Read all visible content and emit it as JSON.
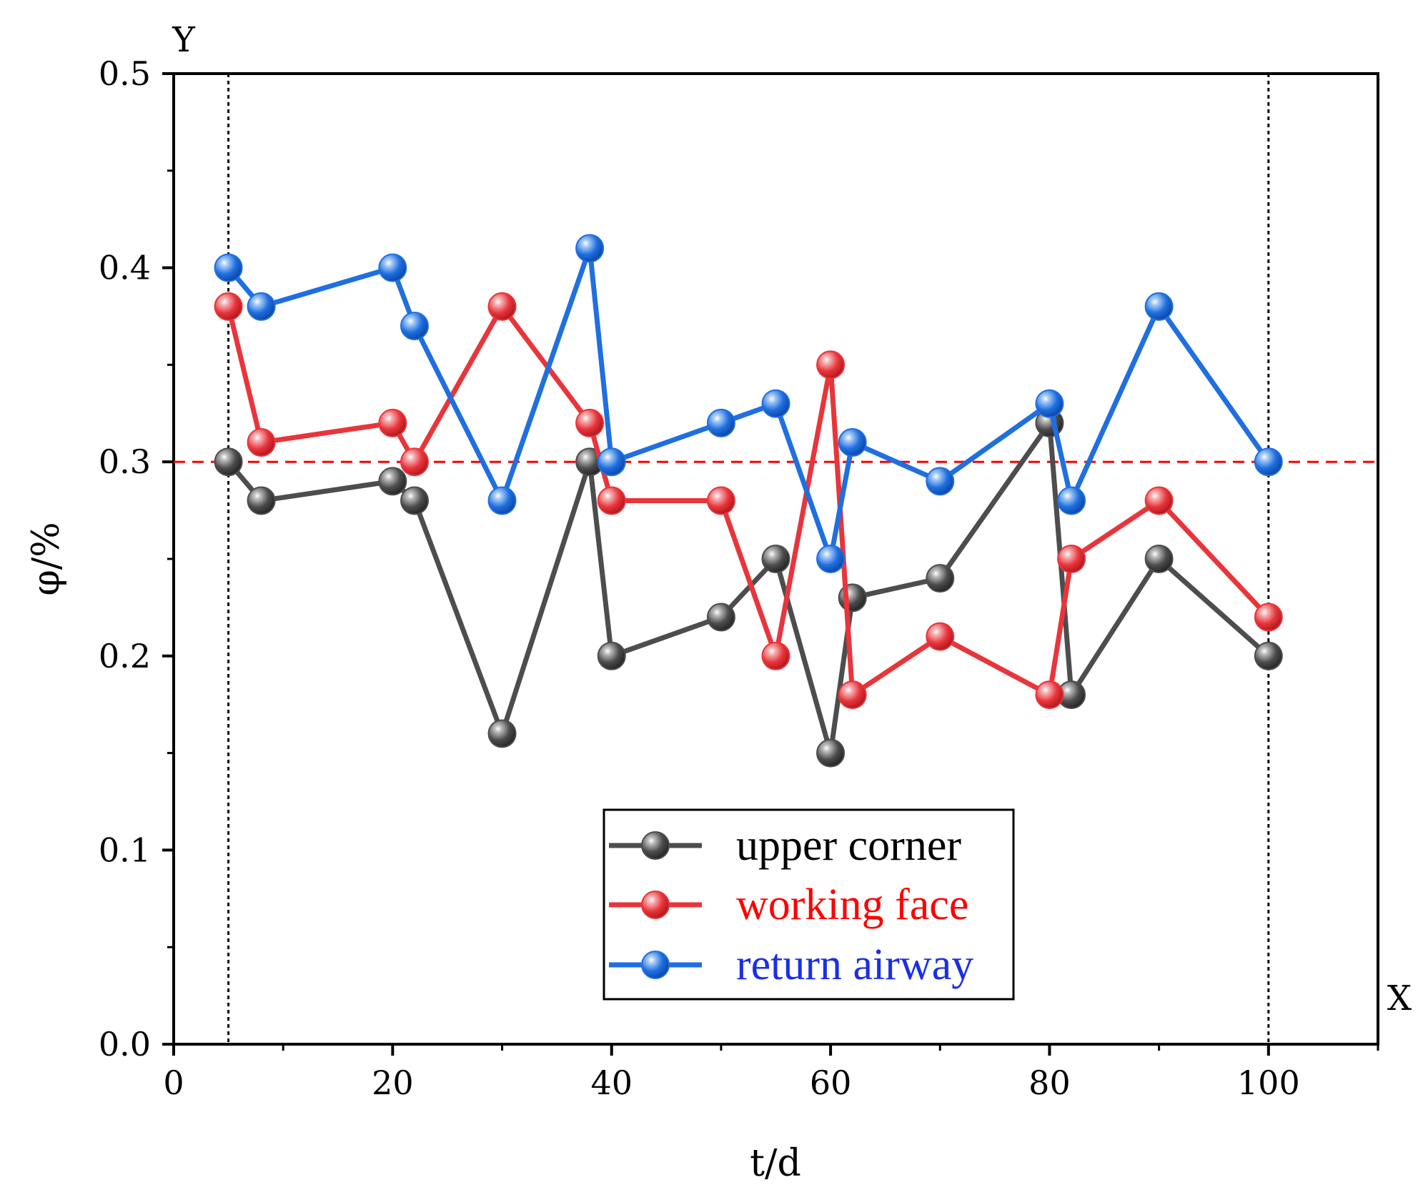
{
  "chart_data": {
    "type": "line",
    "title": "",
    "xlabel": "t/d",
    "ylabel": "φ/%",
    "x_axis_tag": "X",
    "y_axis_tag": "Y",
    "xlim": [
      0,
      110
    ],
    "ylim": [
      0,
      0.5
    ],
    "x_ticks": [
      0,
      20,
      40,
      60,
      80,
      100
    ],
    "x_tick_labels": [
      "0",
      "20",
      "40",
      "60",
      "80",
      "100"
    ],
    "y_ticks": [
      0,
      0.1,
      0.2,
      0.3,
      0.4,
      0.5
    ],
    "y_tick_labels": [
      "0.0",
      "0.1",
      "0.2",
      "0.3",
      "0.4",
      "0.5"
    ],
    "reference_lines": {
      "horizontal": [
        {
          "y": 0.3,
          "color": "#ff0000",
          "style": "dashed"
        }
      ],
      "vertical": [
        {
          "x": 5,
          "color": "#000000",
          "style": "dotted"
        },
        {
          "x": 100,
          "color": "#000000",
          "style": "dotted"
        }
      ]
    },
    "legend_position": "bottom-center",
    "x": [
      5,
      8,
      20,
      22,
      30,
      38,
      40,
      50,
      55,
      60,
      62,
      70,
      80,
      82,
      90,
      100
    ],
    "series": [
      {
        "name": "upper corner",
        "color": "#4d4d4d",
        "text_color": "#000000",
        "values": [
          0.3,
          0.28,
          0.29,
          0.28,
          0.16,
          0.3,
          0.2,
          0.22,
          0.25,
          0.15,
          0.23,
          0.24,
          0.32,
          0.18,
          0.25,
          0.2
        ]
      },
      {
        "name": "working face",
        "color": "#e8353b",
        "text_color": "#ff0000",
        "values": [
          0.38,
          0.31,
          0.32,
          0.3,
          0.38,
          0.32,
          0.28,
          0.28,
          0.2,
          0.35,
          0.18,
          0.21,
          0.18,
          0.25,
          0.28,
          0.22
        ]
      },
      {
        "name": "return airway",
        "color": "#1f6fe0",
        "text_color": "#1b2fe6",
        "values": [
          0.4,
          0.38,
          0.4,
          0.37,
          0.28,
          0.41,
          0.3,
          0.32,
          0.33,
          0.25,
          0.31,
          0.29,
          0.33,
          0.28,
          0.38,
          0.3
        ]
      }
    ]
  }
}
